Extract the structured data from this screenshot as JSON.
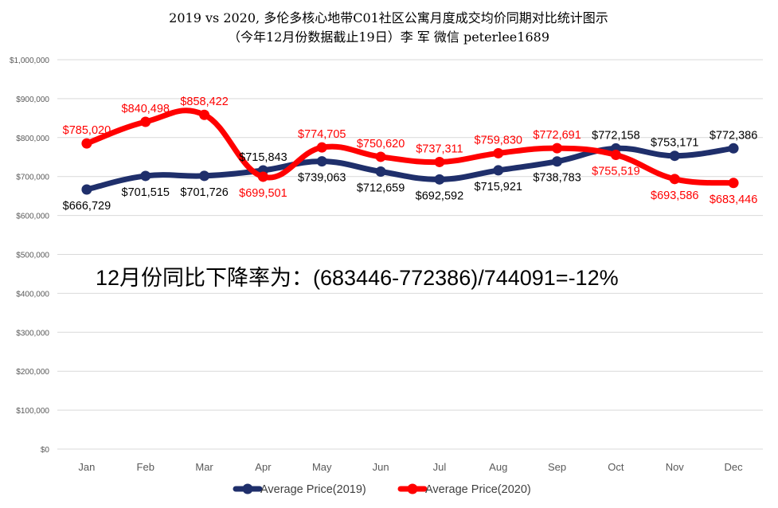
{
  "chart_data": {
    "type": "line",
    "title": "2019 vs 2020, 多伦多核心地带C01社区公寓月度成交均价同期对比统计图示",
    "subtitle": "（今年12月份数据截止19日）李 军 微信 peterlee1689",
    "categories": [
      "Jan",
      "Feb",
      "Mar",
      "Apr",
      "May",
      "Jun",
      "Jul",
      "Aug",
      "Sep",
      "Oct",
      "Nov",
      "Dec"
    ],
    "ylim": [
      0,
      1000000
    ],
    "yticks": [
      "$0",
      "$100,000",
      "$200,000",
      "$300,000",
      "$400,000",
      "$500,000",
      "$600,000",
      "$700,000",
      "$800,000",
      "$900,000",
      "$1,000,000"
    ],
    "grid": "horizontal",
    "legend_position": "bottom",
    "series": [
      {
        "name": "Average Price(2019)",
        "color": "#1f2f6b",
        "values": [
          666729,
          701515,
          701726,
          715843,
          739063,
          712659,
          692592,
          715921,
          738783,
          772158,
          753171,
          772386
        ],
        "labels": [
          "$666,729",
          "$701,515",
          "$701,726",
          "$715,843",
          "$739,063",
          "$712,659",
          "$692,592",
          "$715,921",
          "$738,783",
          "$772,158",
          "$753,171",
          "$772,386"
        ],
        "label_color": "#000000"
      },
      {
        "name": "Average Price(2020)",
        "color": "#ff0000",
        "values": [
          785020,
          840498,
          858422,
          699501,
          774705,
          750620,
          737311,
          759830,
          772691,
          755519,
          693586,
          683446
        ],
        "labels": [
          "$785,020",
          "$840,498",
          "$858,422",
          "$699,501",
          "$774,705",
          "$750,620",
          "$737,311",
          "$759,830",
          "$772,691",
          "$755,519",
          "$693,586",
          "$683,446"
        ],
        "label_color": "#ff0000"
      }
    ],
    "annotation": "12月份同比下降率为：(683446-772386)/744091=-12%"
  }
}
